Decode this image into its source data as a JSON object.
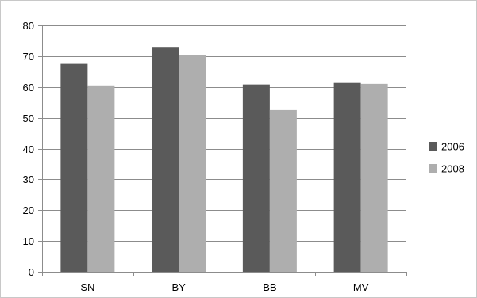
{
  "chart_data": {
    "type": "bar",
    "categories": [
      "SN",
      "BY",
      "BB",
      "MV"
    ],
    "series": [
      {
        "name": "2006",
        "values": [
          67.5,
          73,
          60.8,
          61.3
        ],
        "color": "#5a5a5a"
      },
      {
        "name": "2008",
        "values": [
          60.5,
          70.3,
          52.5,
          61
        ],
        "color": "#aeaeae"
      }
    ],
    "title": "",
    "xlabel": "",
    "ylabel": "",
    "ylim": [
      0,
      80
    ],
    "yticks": [
      0,
      10,
      20,
      30,
      40,
      50,
      60,
      70,
      80
    ],
    "grid": true,
    "legend": "right",
    "gridline_color": "#8c8c8c",
    "axis_color": "#8c8c8c"
  }
}
